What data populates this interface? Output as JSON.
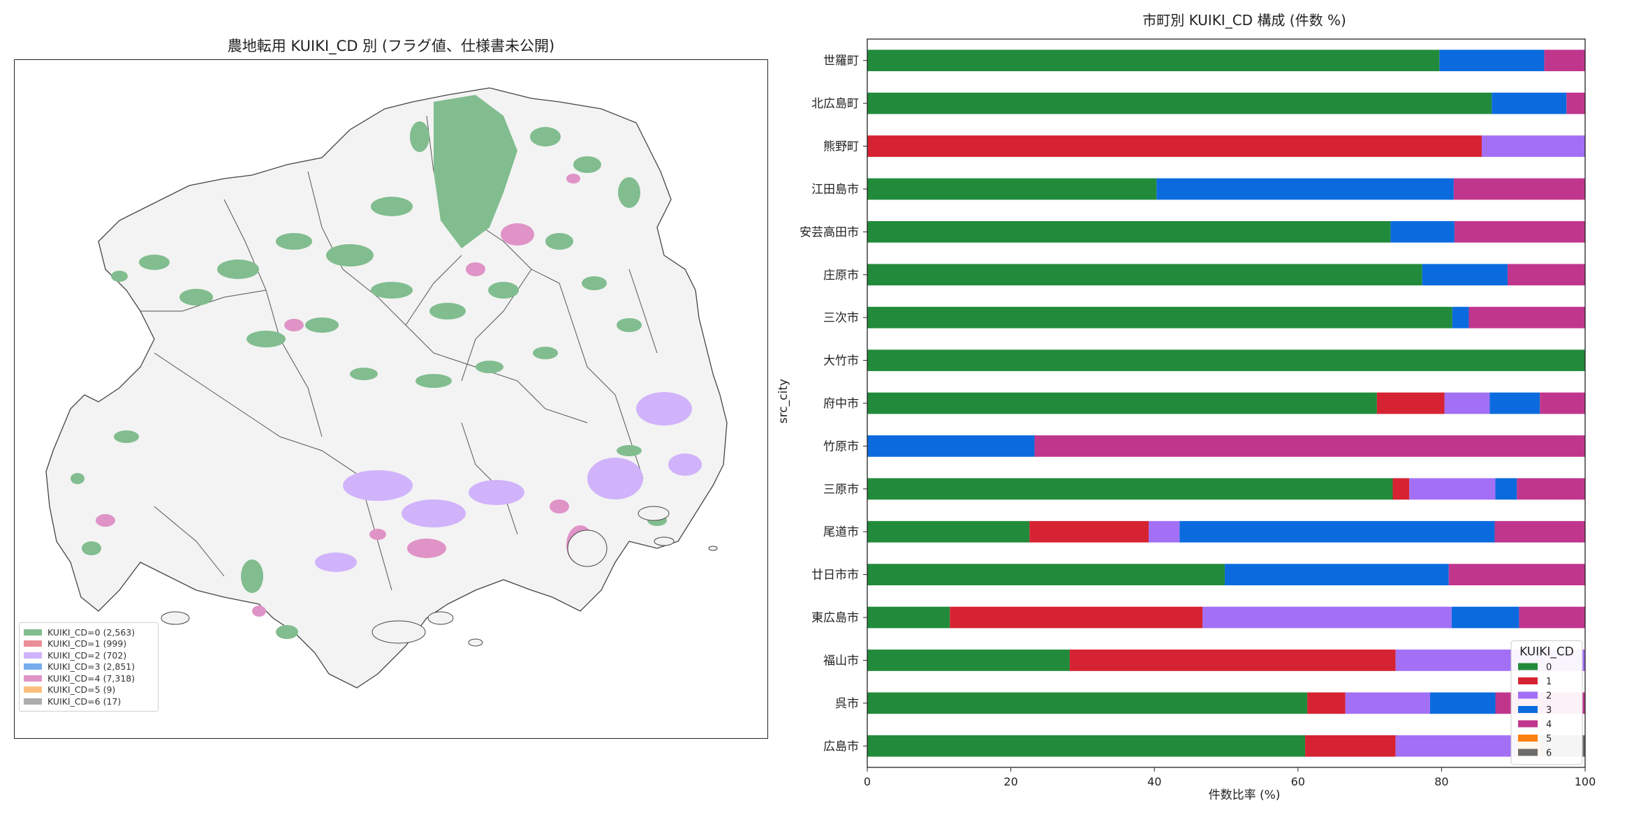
{
  "map": {
    "title": "農地転用 KUIKI_CD 別 (フラグ値、仕様書未公開)",
    "legend": [
      {
        "label": "KUIKI_CD=0 (2,563)",
        "color": "#81bd8f"
      },
      {
        "label": "KUIKI_CD=1 (999)",
        "color": "#ec8e96"
      },
      {
        "label": "KUIKI_CD=2 (702)",
        "color": "#d0b3fb"
      },
      {
        "label": "KUIKI_CD=3 (2,851)",
        "color": "#77adec"
      },
      {
        "label": "KUIKI_CD=4 (7,318)",
        "color": "#df93c7"
      },
      {
        "label": "KUIKI_CD=5 (9)",
        "color": "#fcbf7f"
      },
      {
        "label": "KUIKI_CD=6 (17)",
        "color": "#acacac"
      }
    ]
  },
  "chart_data": {
    "type": "bar",
    "orientation": "horizontal",
    "stacked": true,
    "title": "市町別 KUIKI_CD 構成 (件数 %)",
    "xlabel": "件数比率 (%)",
    "ylabel": "src_city",
    "xlim": [
      0,
      100
    ],
    "xticks": [
      "0",
      "20",
      "40",
      "60",
      "80",
      "100"
    ],
    "grid": false,
    "legend_title": "KUIKI_CD",
    "legend_position": "bottom-right",
    "categories": [
      "世羅町",
      "北広島町",
      "熊野町",
      "江田島市",
      "安芸高田市",
      "庄原市",
      "三次市",
      "大竹市",
      "府中市",
      "竹原市",
      "三原市",
      "尾道市",
      "廿日市市",
      "東広島市",
      "福山市",
      "呉市",
      "広島市"
    ],
    "series": [
      {
        "name": "0",
        "color": "#228b3b",
        "values": [
          79.7,
          87,
          0,
          40.3,
          72.9,
          77.3,
          81.5,
          100,
          71,
          0,
          73.2,
          22.6,
          49.8,
          11.5,
          28.2,
          61.3,
          61
        ]
      },
      {
        "name": "1",
        "color": "#d62331",
        "values": [
          0,
          0,
          85.6,
          0,
          0,
          0,
          0,
          0,
          9.4,
          0,
          2.3,
          16.6,
          0,
          35.2,
          45.4,
          5.3,
          12.6
        ]
      },
      {
        "name": "2",
        "color": "#a370f5",
        "values": [
          0,
          0,
          14.4,
          0,
          0,
          0,
          0,
          0,
          6.3,
          0,
          12,
          4.3,
          0,
          34.7,
          26.4,
          11.8,
          16.9
        ]
      },
      {
        "name": "3",
        "color": "#0b6bde",
        "values": [
          14.6,
          10.4,
          0,
          41.4,
          8.9,
          11.9,
          2.3,
          0,
          7,
          23.3,
          3,
          43.9,
          31.2,
          9.4,
          0,
          9.1,
          0
        ]
      },
      {
        "name": "4",
        "color": "#c0368d",
        "values": [
          5.7,
          2.6,
          0,
          18.3,
          18.2,
          10.8,
          16.2,
          0,
          6.3,
          76.7,
          9.5,
          12.6,
          19,
          9.2,
          0,
          12.5,
          0
        ]
      },
      {
        "name": "5",
        "color": "#fd7f0d",
        "values": [
          0,
          0,
          0,
          0,
          0,
          0,
          0,
          0,
          0,
          0,
          0,
          0,
          0,
          0,
          0,
          0,
          3.3
        ]
      },
      {
        "name": "6",
        "color": "#6c6c6c",
        "values": [
          0,
          0,
          0,
          0,
          0,
          0,
          0,
          0,
          0,
          0,
          0,
          0,
          0,
          0,
          0,
          0,
          6.2
        ]
      }
    ]
  }
}
